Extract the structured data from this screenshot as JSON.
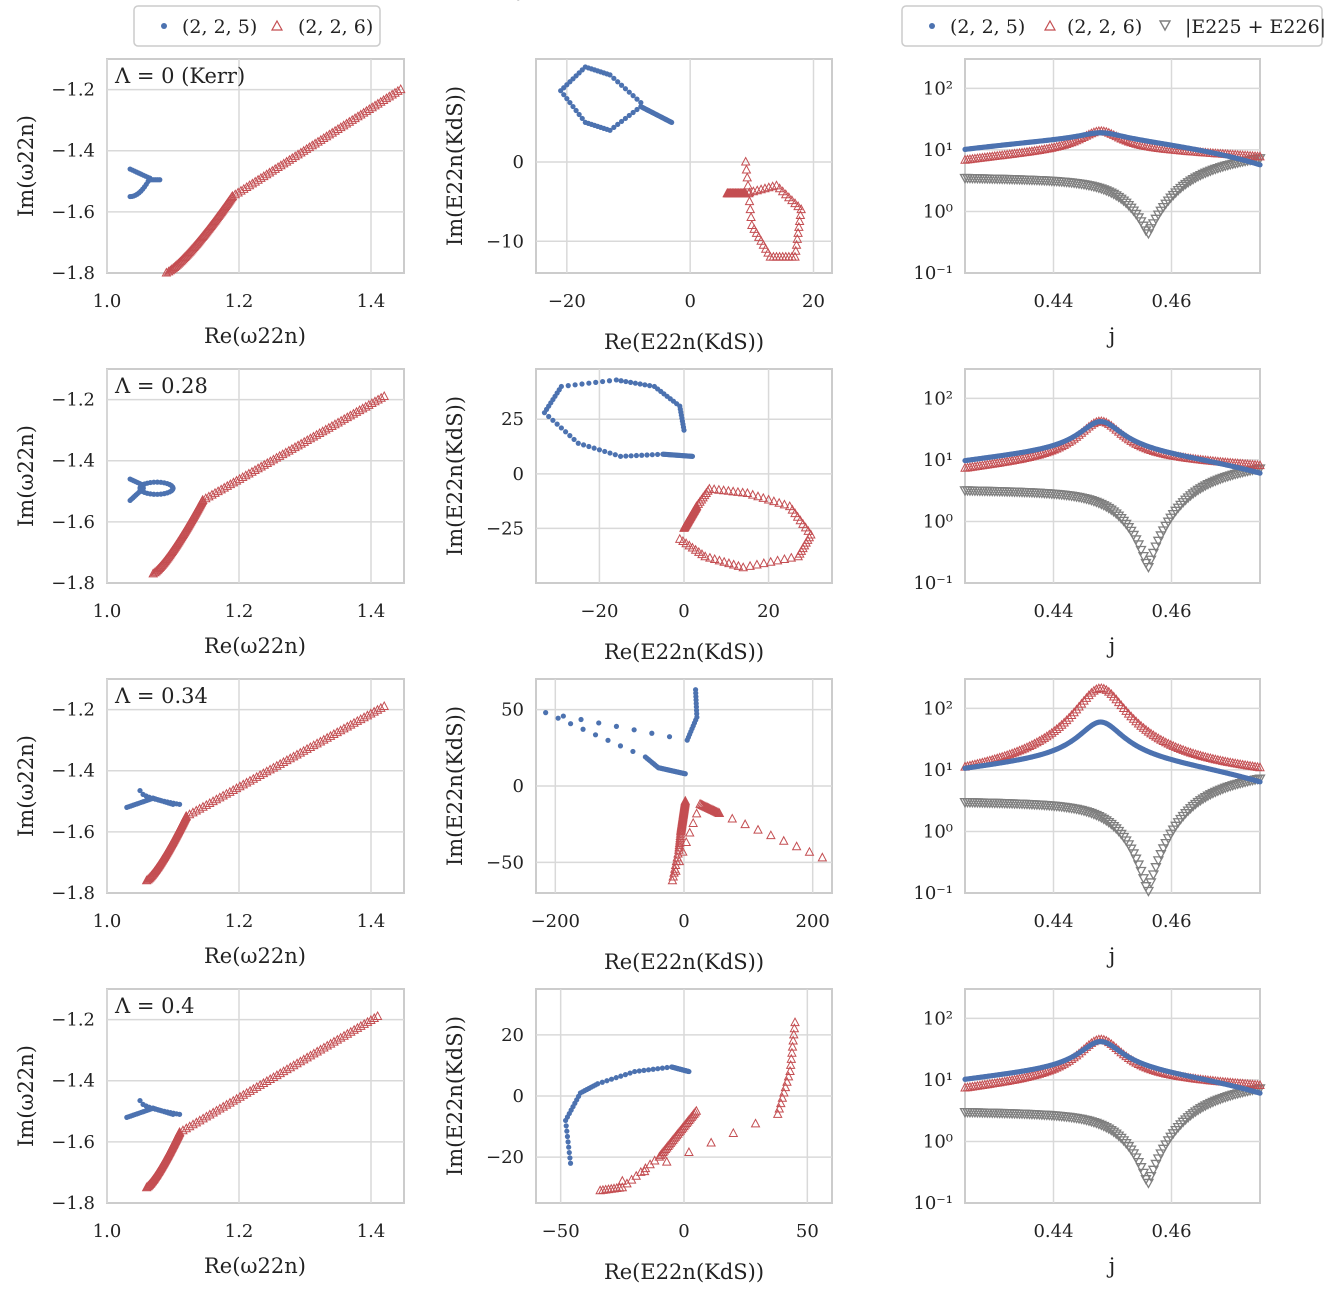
{
  "legends": {
    "left": {
      "items": [
        {
          "label": "(2, 2, 5)",
          "marker": "dot",
          "color": "#4c72b0"
        },
        {
          "label": "(2, 2, 6)",
          "marker": "tri_up",
          "color": "#c44e52"
        }
      ]
    },
    "right": {
      "items": [
        {
          "label": "(2, 2, 5)",
          "marker": "dot",
          "color": "#4c72b0"
        },
        {
          "label": "(2, 2, 6)",
          "marker": "tri_up",
          "color": "#c44e52"
        },
        {
          "label": "|E225 + E226|",
          "marker": "tri_down",
          "color": "#7f7f7f"
        }
      ]
    }
  },
  "labels": {
    "omega_x": "Re(ω22n)",
    "omega_y": "Im(ω22n)",
    "E_x": "Re(E22n(KdS))",
    "E_y": "Im(E22n(KdS))",
    "j_x": "j"
  },
  "chart_data": [
    {
      "type": "scatter",
      "panel": "row1-omega",
      "annotation": "Λ = 0 (Kerr)",
      "xlabel": "Re(ω22n)",
      "ylabel": "Im(ω22n)",
      "xlim": [
        1.0,
        1.45
      ],
      "ylim": [
        -1.8,
        -1.1
      ],
      "xticks": [
        "1.0",
        "1.2",
        "1.4"
      ],
      "yticks": [
        "−1.2",
        "−1.4",
        "−1.6",
        "−1.8"
      ],
      "series": [
        {
          "name": "(2, 2, 5)",
          "shape": "kerr_loop"
        },
        {
          "name": "(2, 2, 6)",
          "end": [
            1.445,
            -1.2
          ],
          "kink": [
            1.19,
            -1.55
          ],
          "start": [
            1.09,
            -1.8
          ]
        }
      ]
    },
    {
      "type": "scatter",
      "panel": "row1-E",
      "xlabel": "Re(E22n(KdS))",
      "ylabel": "Im(E22n(KdS))",
      "xlim": [
        -25,
        23
      ],
      "ylim": [
        -14,
        13
      ],
      "xticks": [
        "−20",
        "0",
        "20"
      ],
      "yticks": [
        "10",
        "0",
        "−10"
      ],
      "series": [
        {
          "name": "(2, 2, 5)",
          "values": [
            [
              -3,
              5
            ],
            [
              -8,
              7
            ],
            [
              -13,
              4
            ],
            [
              -17,
              5
            ],
            [
              -21,
              9
            ],
            [
              -17,
              12
            ],
            [
              -13,
              11
            ],
            [
              -8,
              7.5
            ]
          ]
        },
        {
          "name": "(2, 2, 6)",
          "values": [
            [
              6,
              -4
            ],
            [
              9,
              -4
            ],
            [
              14,
              -3
            ],
            [
              18,
              -6
            ],
            [
              17,
              -12
            ],
            [
              13,
              -12
            ],
            [
              10,
              -8
            ],
            [
              9,
              0
            ]
          ]
        }
      ]
    },
    {
      "type": "scatter",
      "panel": "row1-j",
      "xlabel": "j",
      "yscale": "log",
      "xlim": [
        0.425,
        0.475
      ],
      "ylim": [
        0.1,
        300
      ],
      "xticks": [
        "0.44",
        "0.46"
      ],
      "yticks": [
        "10²",
        "10¹",
        "10⁰",
        "10⁻¹"
      ],
      "series": [
        {
          "name": "(2, 2, 5)",
          "peak": 19,
          "left": 10,
          "right": 5.5
        },
        {
          "name": "(2, 2, 6)",
          "peak": 20,
          "left": 6.5,
          "right": 7.5
        },
        {
          "name": "|E225 + E226|",
          "min_at": 0.456,
          "min": 0.42,
          "left": 3.5,
          "right": 7.5
        }
      ]
    },
    {
      "type": "scatter",
      "panel": "row2-omega",
      "annotation": "Λ = 0.28",
      "xlabel": "Re(ω22n)",
      "ylabel": "Im(ω22n)",
      "xlim": [
        1.0,
        1.45
      ],
      "ylim": [
        -1.8,
        -1.1
      ],
      "xticks": [
        "1.0",
        "1.2",
        "1.4"
      ],
      "yticks": [
        "−1.2",
        "−1.4",
        "−1.6",
        "−1.8"
      ],
      "series": [
        {
          "name": "(2, 2, 5)",
          "shape": "loop"
        },
        {
          "name": "(2, 2, 6)",
          "end": [
            1.42,
            -1.19
          ],
          "kink": [
            1.145,
            -1.53
          ],
          "start": [
            1.07,
            -1.77
          ]
        }
      ]
    },
    {
      "type": "scatter",
      "panel": "row2-E",
      "xlabel": "Re(E22n(KdS))",
      "ylabel": "Im(E22n(KdS))",
      "xlim": [
        -35,
        35
      ],
      "ylim": [
        -50,
        48
      ],
      "xticks": [
        "−20",
        "0",
        "20"
      ],
      "yticks": [
        "25",
        "0",
        "−25"
      ],
      "series": [
        {
          "name": "(2, 2, 5)",
          "values": [
            [
              2,
              8
            ],
            [
              -5,
              9
            ],
            [
              -15,
              8
            ],
            [
              -25,
              14
            ],
            [
              -33,
              28
            ],
            [
              -29,
              40
            ],
            [
              -16,
              43
            ],
            [
              -7,
              40
            ],
            [
              -1,
              31
            ],
            [
              0,
              20
            ]
          ]
        },
        {
          "name": "(2, 2, 6)",
          "values": [
            [
              0,
              -25
            ],
            [
              3,
              -15
            ],
            [
              6,
              -7
            ],
            [
              15,
              -9
            ],
            [
              25,
              -15
            ],
            [
              30,
              -28
            ],
            [
              27,
              -38
            ],
            [
              14,
              -43
            ],
            [
              5,
              -38
            ],
            [
              -1,
              -30
            ]
          ]
        }
      ]
    },
    {
      "type": "scatter",
      "panel": "row2-j",
      "xlabel": "j",
      "yscale": "log",
      "xlim": [
        0.425,
        0.475
      ],
      "ylim": [
        0.1,
        300
      ],
      "xticks": [
        "0.44",
        "0.46"
      ],
      "yticks": [
        "10²",
        "10¹",
        "10⁰",
        "10⁻¹"
      ],
      "series": [
        {
          "name": "(2, 2, 5)",
          "peak": 42,
          "left": 9,
          "right": 5.5
        },
        {
          "name": "(2, 2, 6)",
          "peak": 42,
          "left": 6.5,
          "right": 7.5
        },
        {
          "name": "|E225 + E226|",
          "min_at": 0.456,
          "min": 0.17,
          "left": 3.2,
          "right": 7.5
        }
      ]
    },
    {
      "type": "scatter",
      "panel": "row3-omega",
      "annotation": "Λ = 0.34",
      "xlabel": "Re(ω22n)",
      "ylabel": "Im(ω22n)",
      "xlim": [
        1.0,
        1.45
      ],
      "ylim": [
        -1.8,
        -1.1
      ],
      "xticks": [
        "1.0",
        "1.2",
        "1.4"
      ],
      "yticks": [
        "−1.2",
        "−1.4",
        "−1.6",
        "−1.8"
      ],
      "series": [
        {
          "name": "(2, 2, 5)",
          "shape": "hook"
        },
        {
          "name": "(2, 2, 6)",
          "end": [
            1.42,
            -1.19
          ],
          "kink": [
            1.12,
            -1.55
          ],
          "start": [
            1.06,
            -1.76
          ]
        }
      ]
    },
    {
      "type": "scatter",
      "panel": "row3-E",
      "xlabel": "Re(E22n(KdS))",
      "ylabel": "Im(E22n(KdS))",
      "xlim": [
        -230,
        230
      ],
      "ylim": [
        -70,
        70
      ],
      "xticks": [
        "−200",
        "0",
        "200"
      ],
      "yticks": [
        "50",
        "0",
        "−50"
      ],
      "series": [
        {
          "name": "(2, 2, 5)",
          "values": [
            [
              2,
              8
            ],
            [
              -40,
              12
            ],
            [
              -60,
              19
            ],
            [
              -215,
              48
            ],
            [
              5,
              30
            ],
            [
              20,
              45
            ],
            [
              18,
              63
            ]
          ]
        },
        {
          "name": "(2, 2, 6)",
          "values": [
            [
              2,
              -10
            ],
            [
              -5,
              -30
            ],
            [
              -8,
              -42
            ],
            [
              -18,
              -62
            ],
            [
              25,
              -12
            ],
            [
              40,
              -15
            ],
            [
              55,
              -18
            ],
            [
              215,
              -47
            ]
          ]
        }
      ]
    },
    {
      "type": "scatter",
      "panel": "row3-j",
      "xlabel": "j",
      "yscale": "log",
      "xlim": [
        0.425,
        0.475
      ],
      "ylim": [
        0.1,
        300
      ],
      "xticks": [
        "0.44",
        "0.46"
      ],
      "yticks": [
        "10²",
        "10¹",
        "10⁰",
        "10⁻¹"
      ],
      "series": [
        {
          "name": "(2, 2, 5)",
          "peak": 60,
          "left": 9.5,
          "right": 5.5
        },
        {
          "name": "(2, 2, 6)",
          "peak": 210,
          "left": 6.5,
          "right": 7.5
        },
        {
          "name": "|E225 + E226|",
          "min_at": 0.456,
          "min": 0.1,
          "left": 3.0,
          "right": 7.5
        }
      ]
    },
    {
      "type": "scatter",
      "panel": "row4-omega",
      "annotation": "Λ = 0.4",
      "xlabel": "Re(ω22n)",
      "ylabel": "Im(ω22n)",
      "xlim": [
        1.0,
        1.45
      ],
      "ylim": [
        -1.8,
        -1.1
      ],
      "xticks": [
        "1.0",
        "1.2",
        "1.4"
      ],
      "yticks": [
        "−1.2",
        "−1.4",
        "−1.6",
        "−1.8"
      ],
      "series": [
        {
          "name": "(2, 2, 5)",
          "shape": "hook"
        },
        {
          "name": "(2, 2, 6)",
          "end": [
            1.41,
            -1.19
          ],
          "kink": [
            1.11,
            -1.57
          ],
          "start": [
            1.06,
            -1.75
          ]
        }
      ]
    },
    {
      "type": "scatter",
      "panel": "row4-E",
      "xlabel": "Re(E22n(KdS))",
      "ylabel": "Im(E22n(KdS))",
      "xlim": [
        -60,
        60
      ],
      "ylim": [
        -35,
        35
      ],
      "xticks": [
        "−50",
        "0",
        "50"
      ],
      "yticks": [
        "20",
        "0",
        "−20"
      ],
      "series": [
        {
          "name": "(2, 2, 5)",
          "values": [
            [
              2,
              8
            ],
            [
              -5,
              9.5
            ],
            [
              -20,
              8
            ],
            [
              -35,
              4
            ],
            [
              -42,
              1
            ],
            [
              -48,
              -8
            ],
            [
              -46,
              -22
            ]
          ]
        },
        {
          "name": "(2, 2, 6)",
          "values": [
            [
              5,
              -5
            ],
            [
              -10,
              -20
            ],
            [
              -25,
              -30
            ],
            [
              -34,
              -31
            ],
            [
              38,
              -6
            ],
            [
              43,
              8
            ],
            [
              45,
              24
            ]
          ]
        }
      ]
    },
    {
      "type": "scatter",
      "panel": "row4-j",
      "xlabel": "j",
      "yscale": "log",
      "xlim": [
        0.425,
        0.475
      ],
      "ylim": [
        0.1,
        300
      ],
      "xticks": [
        "0.44",
        "0.46"
      ],
      "yticks": [
        "10²",
        "10¹",
        "10⁰",
        "10⁻¹"
      ],
      "series": [
        {
          "name": "(2, 2, 5)",
          "peak": 42,
          "left": 9.5,
          "right": 5.5
        },
        {
          "name": "(2, 2, 6)",
          "peak": 45,
          "left": 6.5,
          "right": 7.5
        },
        {
          "name": "|E225 + E226|",
          "min_at": 0.456,
          "min": 0.2,
          "left": 3.0,
          "right": 7.5
        }
      ]
    }
  ]
}
